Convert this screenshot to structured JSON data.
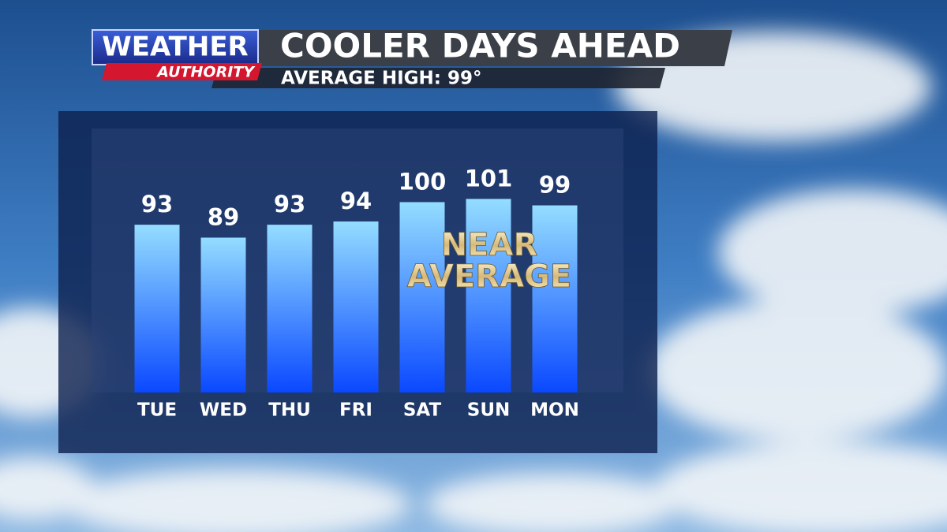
{
  "logo": {
    "top": "WEATHER",
    "bottom": "AUTHORITY"
  },
  "chart_data": {
    "type": "bar",
    "title": "COOLER DAYS AHEAD",
    "subtitle": "AVERAGE HIGH: 99°",
    "categories": [
      "TUE",
      "WED",
      "THU",
      "FRI",
      "SAT",
      "SUN",
      "MON"
    ],
    "values": [
      93,
      89,
      93,
      94,
      100,
      101,
      99
    ],
    "color": [
      "#94ddff",
      "#0a48ff"
    ],
    "ylim": [
      41,
      105
    ],
    "annotation": [
      "NEAR",
      "AVERAGE"
    ]
  }
}
